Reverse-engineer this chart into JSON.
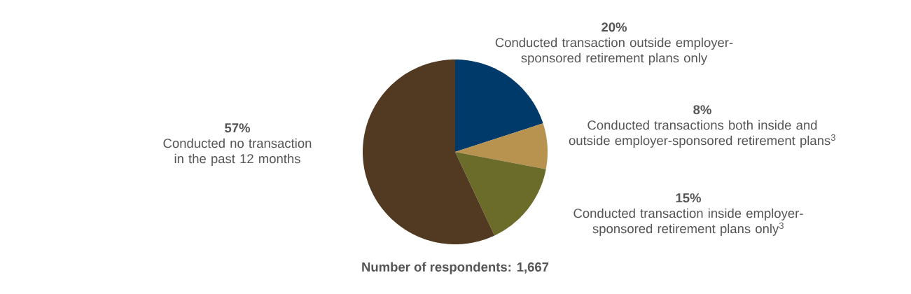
{
  "chart_data": {
    "type": "pie",
    "categories": [
      "Conducted transaction outside employer-sponsored retirement plans only",
      "Conducted transactions both inside and outside employer-sponsored retirement plans$^{3}$",
      "Conducted transaction inside employer-sponsored retirement plans only$^{3}$",
      "Conducted no transaction in the past 12 months"
    ],
    "values": [
      20,
      8,
      15,
      57
    ],
    "value_labels": [
      "20%",
      "8%",
      "15%",
      "57%"
    ],
    "colors": [
      "#003a6b",
      "#b8924f",
      "#6b6b2a",
      "#523a22"
    ],
    "annotations": [
      "Number of respondents: 1,667"
    ]
  }
}
